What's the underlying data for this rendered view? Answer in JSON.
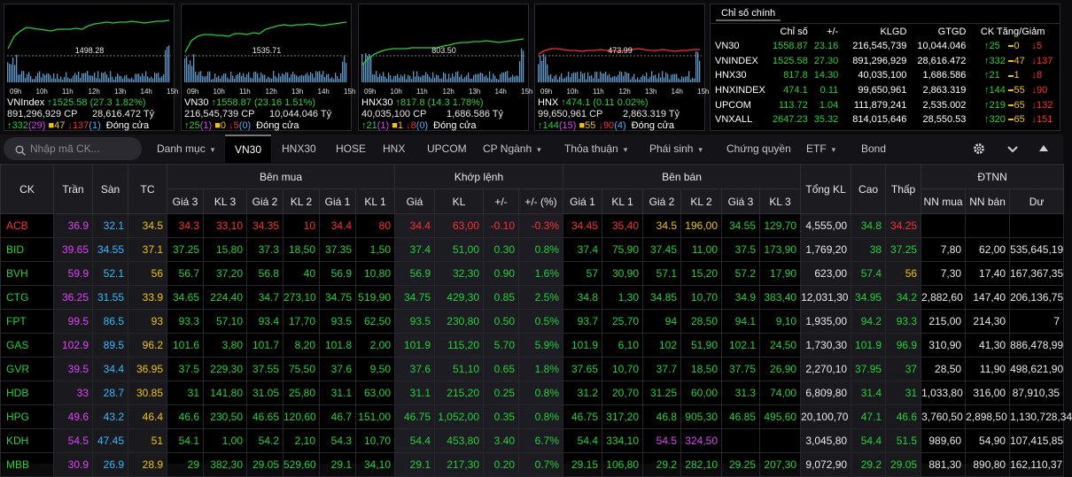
{
  "colors": {
    "up": "#22d13a",
    "down": "#ff3030",
    "ref": "#f0c400",
    "ceil": "#e040fb",
    "floor": "#35b9ff",
    "white": "#e8e8e8"
  },
  "mini_charts": [
    {
      "name": "VNIndex",
      "change_text": "1525.58 (27.3 1.82%)",
      "volume": "891,296,929 CP",
      "value": "28,616.472 Tỷ",
      "adv": "332",
      "ceil_adv": "(29)",
      "ref": "47",
      "dec": "137",
      "floor_dec": "(1)",
      "status": "Đóng cửa",
      "ref_label": "1498.28",
      "hours": [
        "09h",
        "10h",
        "11h",
        "12h",
        "13h",
        "14h",
        "15h"
      ],
      "line": [
        0.44,
        0.3,
        0.24,
        0.2,
        0.21,
        0.22,
        0.23,
        0.24,
        0.22,
        0.22,
        0.22,
        0.21,
        0.22,
        0.18,
        0.16,
        0.15,
        0.14,
        0.15,
        0.14,
        0.14,
        0.13,
        0.14,
        0.15,
        0.14,
        0.13,
        0.13,
        0.12
      ]
    },
    {
      "name": "VN30",
      "change_text": "1558.87 (23.16 1.51%)",
      "volume": "216,545,739 CP",
      "value": "10,044.046 Tỷ",
      "adv": "25",
      "ceil_adv": "(1)",
      "ref": "0",
      "dec": "5",
      "floor_dec": "(0)",
      "status": "Đóng cửa",
      "ref_label": "1535.71",
      "hours": [
        "09h",
        "10h",
        "11h",
        "12h",
        "13h",
        "14h",
        "15h"
      ],
      "line": [
        0.48,
        0.35,
        0.3,
        0.28,
        0.28,
        0.29,
        0.29,
        0.3,
        0.27,
        0.27,
        0.28,
        0.26,
        0.27,
        0.22,
        0.2,
        0.18,
        0.17,
        0.18,
        0.17,
        0.17,
        0.16,
        0.17,
        0.18,
        0.17,
        0.16,
        0.15,
        0.14
      ]
    },
    {
      "name": "HNX30",
      "change_text": "817.8 (14.3 1.78%)",
      "volume": "40,035,100 CP",
      "value": "1,686.586 Tỷ",
      "adv": "21",
      "ceil_adv": "(1)",
      "ref": "1",
      "dec": "8",
      "floor_dec": "(0)",
      "status": "Đóng cửa",
      "ref_label": "803.50",
      "hours": [
        "09h",
        "10h",
        "11h",
        "12h",
        "13h",
        "14h",
        "15h"
      ],
      "line": [
        0.62,
        0.55,
        0.5,
        0.47,
        0.45,
        0.44,
        0.44,
        0.44,
        0.43,
        0.43,
        0.43,
        0.43,
        0.43,
        0.41,
        0.4,
        0.38,
        0.37,
        0.37,
        0.36,
        0.36,
        0.35,
        0.36,
        0.37,
        0.36,
        0.35,
        0.34,
        0.33
      ]
    },
    {
      "name": "HNX",
      "change_text": "474.1 (0.11 0.02%)",
      "volume": "99,650,961 CP",
      "value": "2,863.319 Tỷ",
      "adv": "144",
      "ceil_adv": "(15)",
      "ref": "55",
      "dec": "90",
      "floor_dec": "(4)",
      "status": "Đóng cửa",
      "ref_label": "473.99",
      "hours": [
        "09h",
        "10h",
        "11h",
        "12h",
        "13h",
        "14h",
        "15h"
      ],
      "line": [
        0.5,
        0.46,
        0.44,
        0.44,
        0.45,
        0.46,
        0.46,
        0.47,
        0.46,
        0.46,
        0.45,
        0.46,
        0.46,
        0.47,
        0.46,
        0.45,
        0.44,
        0.45,
        0.46,
        0.46,
        0.45,
        0.46,
        0.47,
        0.46,
        0.46,
        0.45,
        0.45
      ]
    }
  ],
  "index_panel": {
    "tab": "Chỉ số chính",
    "headers": [
      "",
      "Chỉ số",
      "+/-",
      "KLGD",
      "GTGD",
      "CK Tăng/Giảm"
    ],
    "rows": [
      {
        "name": "VN30",
        "index": "1558.87",
        "chg": "23.16",
        "vol": "216,545,739",
        "val": "10,044.046",
        "up": "25",
        "ref": "0",
        "dn": "5"
      },
      {
        "name": "VNINDEX",
        "index": "1525.58",
        "chg": "27.30",
        "vol": "891,296,929",
        "val": "28,616.472",
        "up": "332",
        "ref": "47",
        "dn": "137"
      },
      {
        "name": "HNX30",
        "index": "817.8",
        "chg": "14.30",
        "vol": "40,035,100",
        "val": "1,686.586",
        "up": "21",
        "ref": "1",
        "dn": "8"
      },
      {
        "name": "HNXINDEX",
        "index": "474.1",
        "chg": "0.11",
        "vol": "99,650,961",
        "val": "2,863.319",
        "up": "144",
        "ref": "55",
        "dn": "90"
      },
      {
        "name": "UPCOM",
        "index": "113.72",
        "chg": "1.04",
        "vol": "111,879,241",
        "val": "2,535.002",
        "up": "219",
        "ref": "65",
        "dn": "132"
      },
      {
        "name": "VNXALL",
        "index": "2647.23",
        "chg": "35.32",
        "vol": "814,015,646",
        "val": "28,550.53",
        "up": "320",
        "ref": "65",
        "dn": "151"
      }
    ]
  },
  "toolbar": {
    "search_placeholder": "Nhập mã CK...",
    "tabs": [
      {
        "label": "Danh mục",
        "dropdown": true
      },
      {
        "label": "VN30",
        "active": true
      },
      {
        "label": "HNX30"
      },
      {
        "label": "HOSE"
      },
      {
        "label": "HNX"
      },
      {
        "label": "UPCOM"
      },
      {
        "label": "CP Ngành",
        "dropdown": true
      },
      {
        "label": "Thỏa thuận",
        "dropdown": true
      },
      {
        "label": "Phái sinh",
        "dropdown": true
      },
      {
        "label": "Chứng quyền"
      },
      {
        "label": "ETF",
        "dropdown": true
      },
      {
        "label": "Bond"
      }
    ]
  },
  "board": {
    "headers_top": {
      "ck": "CK",
      "ceil": "Trần",
      "floor": "Sàn",
      "ref": "TC",
      "buy": "Bên mua",
      "match": "Khớp lệnh",
      "sell": "Bên bán",
      "total": "Tổng KL",
      "high": "Cao",
      "low": "Thấp",
      "foreign": "ĐTNN"
    },
    "headers_sub": [
      "Giá 3",
      "KL 3",
      "Giá 2",
      "KL 2",
      "Giá 1",
      "KL 1",
      "Giá",
      "KL",
      "+/-",
      "+/- (%)",
      "Giá 1",
      "KL 1",
      "Giá 2",
      "KL 2",
      "Giá 3",
      "KL 3",
      "NN mua",
      "NN bán",
      "Dư"
    ],
    "rows": [
      {
        "sym": [
          "ACB",
          "dn"
        ],
        "ceil": "36.9",
        "floor": "32.1",
        "ref": "34.5",
        "b3": [
          "34.3",
          "dn"
        ],
        "bk3": "33,10",
        "b2": [
          "34.35",
          "dn"
        ],
        "bk2": "10",
        "b1": [
          "34.4",
          "dn"
        ],
        "bk1": "80",
        "mp": [
          "34.4",
          "dn"
        ],
        "mk": "63,00",
        "ch": "-0.10",
        "pc": "-0.3%",
        "s1": [
          "34.45",
          "dn"
        ],
        "sk1": "35,40",
        "s2": [
          "34.5",
          "ref"
        ],
        "sk2": "196,00",
        "s3": [
          "34.55",
          "up"
        ],
        "sk3": "129,70",
        "tot": "4,555,00",
        "hi": [
          "34.8",
          "up"
        ],
        "lo": [
          "34.25",
          "dn"
        ],
        "nnb": "",
        "nns": "",
        "room": ""
      },
      {
        "sym": [
          "BID",
          "up"
        ],
        "ceil": "39.65",
        "floor": "34.55",
        "ref": "37.1",
        "b3": [
          "37.25",
          "up"
        ],
        "bk3": "15,80",
        "b2": [
          "37.3",
          "up"
        ],
        "bk2": "18,50",
        "b1": [
          "37.35",
          "up"
        ],
        "bk1": "1,50",
        "mp": [
          "37.4",
          "up"
        ],
        "mk": "51,00",
        "ch": "0.30",
        "pc": "0.8%",
        "s1": [
          "37.4",
          "up"
        ],
        "sk1": "75,90",
        "s2": [
          "37.45",
          "up"
        ],
        "sk2": "11,00",
        "s3": [
          "37.5",
          "up"
        ],
        "sk3": "173,90",
        "tot": "1,769,20",
        "hi": [
          "38",
          "up"
        ],
        "lo": [
          "37.25",
          "up"
        ],
        "nnb": "7,80",
        "nns": "62,00",
        "room": "535,645,19"
      },
      {
        "sym": [
          "BVH",
          "up"
        ],
        "ceil": "59.9",
        "floor": "52.1",
        "ref": "56",
        "b3": [
          "56.7",
          "up"
        ],
        "bk3": "37,20",
        "b2": [
          "56.8",
          "up"
        ],
        "bk2": "40",
        "b1": [
          "56.9",
          "up"
        ],
        "bk1": "10,80",
        "mp": [
          "56.9",
          "up"
        ],
        "mk": "32,30",
        "ch": "0.90",
        "pc": "1.6%",
        "s1": [
          "57",
          "up"
        ],
        "sk1": "30,90",
        "s2": [
          "57.1",
          "up"
        ],
        "sk2": "15,20",
        "s3": [
          "57.2",
          "up"
        ],
        "sk3": "17,90",
        "tot": "623,00",
        "hi": [
          "57.4",
          "up"
        ],
        "lo": [
          "56",
          "ref"
        ],
        "nnb": "7,30",
        "nns": "17,40",
        "room": "167,367,35"
      },
      {
        "sym": [
          "CTG",
          "up"
        ],
        "ceil": "36.25",
        "floor": "31.55",
        "ref": "33.9",
        "b3": [
          "34.65",
          "up"
        ],
        "bk3": "224,40",
        "b2": [
          "34.7",
          "up"
        ],
        "bk2": "273,10",
        "b1": [
          "34.75",
          "up"
        ],
        "bk1": "519,90",
        "mp": [
          "34.75",
          "up"
        ],
        "mk": "429,30",
        "ch": "0.85",
        "pc": "2.5%",
        "s1": [
          "34.8",
          "up"
        ],
        "sk1": "1,30",
        "s2": [
          "34.85",
          "up"
        ],
        "sk2": "10,70",
        "s3": [
          "34.9",
          "up"
        ],
        "sk3": "383,40",
        "tot": "12,031,30",
        "hi": [
          "34.95",
          "up"
        ],
        "lo": [
          "34.2",
          "up"
        ],
        "nnb": "2,882,60",
        "nns": "147,40",
        "room": "206,136,75"
      },
      {
        "sym": [
          "FPT",
          "up"
        ],
        "ceil": "99.5",
        "floor": "86.5",
        "ref": "93",
        "b3": [
          "93.3",
          "up"
        ],
        "bk3": "57,10",
        "b2": [
          "93.4",
          "up"
        ],
        "bk2": "17,70",
        "b1": [
          "93.5",
          "up"
        ],
        "bk1": "62,50",
        "mp": [
          "93.5",
          "up"
        ],
        "mk": "230,80",
        "ch": "0.50",
        "pc": "0.5%",
        "s1": [
          "93.7",
          "up"
        ],
        "sk1": "25,70",
        "s2": [
          "94",
          "up"
        ],
        "sk2": "28,50",
        "s3": [
          "94.1",
          "up"
        ],
        "sk3": "9,10",
        "tot": "1,935,00",
        "hi": [
          "94.2",
          "up"
        ],
        "lo": [
          "93.3",
          "up"
        ],
        "nnb": "215,00",
        "nns": "214,30",
        "room": "7"
      },
      {
        "sym": [
          "GAS",
          "up"
        ],
        "ceil": "102.9",
        "floor": "89.5",
        "ref": "96.2",
        "b3": [
          "101.6",
          "up"
        ],
        "bk3": "3,80",
        "b2": [
          "101.7",
          "up"
        ],
        "bk2": "8,20",
        "b1": [
          "101.8",
          "up"
        ],
        "bk1": "2,00",
        "mp": [
          "101.9",
          "up"
        ],
        "mk": "115,20",
        "ch": "5.70",
        "pc": "5.9%",
        "s1": [
          "101.9",
          "up"
        ],
        "sk1": "6,10",
        "s2": [
          "102",
          "up"
        ],
        "sk2": "51,90",
        "s3": [
          "102.1",
          "up"
        ],
        "sk3": "24,50",
        "tot": "1,730,30",
        "hi": [
          "101.9",
          "up"
        ],
        "lo": [
          "96.9",
          "up"
        ],
        "nnb": "310,90",
        "nns": "41,30",
        "room": "886,478,99"
      },
      {
        "sym": [
          "GVR",
          "up"
        ],
        "ceil": "39.5",
        "floor": "34.4",
        "ref": "36.95",
        "b3": [
          "37.5",
          "up"
        ],
        "bk3": "229,30",
        "b2": [
          "37.55",
          "up"
        ],
        "bk2": "75,50",
        "b1": [
          "37.6",
          "up"
        ],
        "bk1": "9,50",
        "mp": [
          "37.6",
          "up"
        ],
        "mk": "51,10",
        "ch": "0.65",
        "pc": "1.8%",
        "s1": [
          "37.65",
          "up"
        ],
        "sk1": "10,70",
        "s2": [
          "37.7",
          "up"
        ],
        "sk2": "18,50",
        "s3": [
          "37.75",
          "up"
        ],
        "sk3": "26,90",
        "tot": "2,270,10",
        "hi": [
          "37.95",
          "up"
        ],
        "lo": [
          "37",
          "up"
        ],
        "nnb": "28,50",
        "nns": "11,90",
        "room": "498,621,90"
      },
      {
        "sym": [
          "HDB",
          "up"
        ],
        "ceil": "33",
        "floor": "28.7",
        "ref": "30.85",
        "b3": [
          "31",
          "up"
        ],
        "bk3": "141,80",
        "b2": [
          "31.05",
          "up"
        ],
        "bk2": "25,80",
        "b1": [
          "31.1",
          "up"
        ],
        "bk1": "63,00",
        "mp": [
          "31.1",
          "up"
        ],
        "mk": "215,20",
        "ch": "0.25",
        "pc": "0.8%",
        "s1": [
          "31.2",
          "up"
        ],
        "sk1": "20,70",
        "s2": [
          "31.25",
          "up"
        ],
        "sk2": "60,00",
        "s3": [
          "31.3",
          "up"
        ],
        "sk3": "74,00",
        "tot": "6,809,80",
        "hi": [
          "31.4",
          "up"
        ],
        "lo": [
          "31",
          "up"
        ],
        "nnb": "1,033,80",
        "nns": "316,00",
        "room": "87,910,35"
      },
      {
        "sym": [
          "HPG",
          "up"
        ],
        "ceil": "49.6",
        "floor": "43.2",
        "ref": "46.4",
        "b3": [
          "46.6",
          "up"
        ],
        "bk3": "230,50",
        "b2": [
          "46.65",
          "up"
        ],
        "bk2": "120,60",
        "b1": [
          "46.7",
          "up"
        ],
        "bk1": "151,00",
        "mp": [
          "46.75",
          "up"
        ],
        "mk": "1,052,00",
        "ch": "0.35",
        "pc": "0.8%",
        "s1": [
          "46.75",
          "up"
        ],
        "sk1": "317,20",
        "s2": [
          "46.8",
          "up"
        ],
        "sk2": "905,30",
        "s3": [
          "46.85",
          "up"
        ],
        "sk3": "495,60",
        "tot": "20,100,70",
        "hi": [
          "47.1",
          "up"
        ],
        "lo": [
          "46.6",
          "up"
        ],
        "nnb": "3,760,50",
        "nns": "2,898,50",
        "room": "1,130,728,34"
      },
      {
        "sym": [
          "KDH",
          "up"
        ],
        "ceil": "54.5",
        "floor": "47.45",
        "ref": "51",
        "b3": [
          "54.1",
          "up"
        ],
        "bk3": "1,00",
        "b2": [
          "54.2",
          "up"
        ],
        "bk2": "2,10",
        "b1": [
          "54.3",
          "up"
        ],
        "bk1": "10,70",
        "mp": [
          "54.4",
          "up"
        ],
        "mk": "453,80",
        "ch": "3.40",
        "pc": "6.7%",
        "s1": [
          "54.4",
          "up"
        ],
        "sk1": "334,10",
        "s2": [
          "54.5",
          "ce"
        ],
        "sk2": "324,50",
        "s3": [
          "",
          "up"
        ],
        "sk3": "",
        "tot": "3,045,80",
        "hi": [
          "54.4",
          "up"
        ],
        "lo": [
          "51.5",
          "up"
        ],
        "nnb": "989,60",
        "nns": "54,90",
        "room": "107,415,85"
      },
      {
        "sym": [
          "MBB",
          "up"
        ],
        "ceil": "30.9",
        "floor": "26.9",
        "ref": "28.9",
        "b3": [
          "29",
          "up"
        ],
        "bk3": "382,30",
        "b2": [
          "29.05",
          "up"
        ],
        "bk2": "529,60",
        "b1": [
          "29.1",
          "up"
        ],
        "bk1": "34,10",
        "mp": [
          "29.1",
          "up"
        ],
        "mk": "217,30",
        "ch": "0.20",
        "pc": "0.7%",
        "s1": [
          "29.15",
          "up"
        ],
        "sk1": "106,80",
        "s2": [
          "29.2",
          "up"
        ],
        "sk2": "282,10",
        "s3": [
          "29.25",
          "up"
        ],
        "sk3": "207,30",
        "tot": "9,072,90",
        "hi": [
          "29.2",
          "up"
        ],
        "lo": [
          "29.05",
          "up"
        ],
        "nnb": "881,30",
        "nns": "890,80",
        "room": "162,110,37"
      }
    ]
  }
}
